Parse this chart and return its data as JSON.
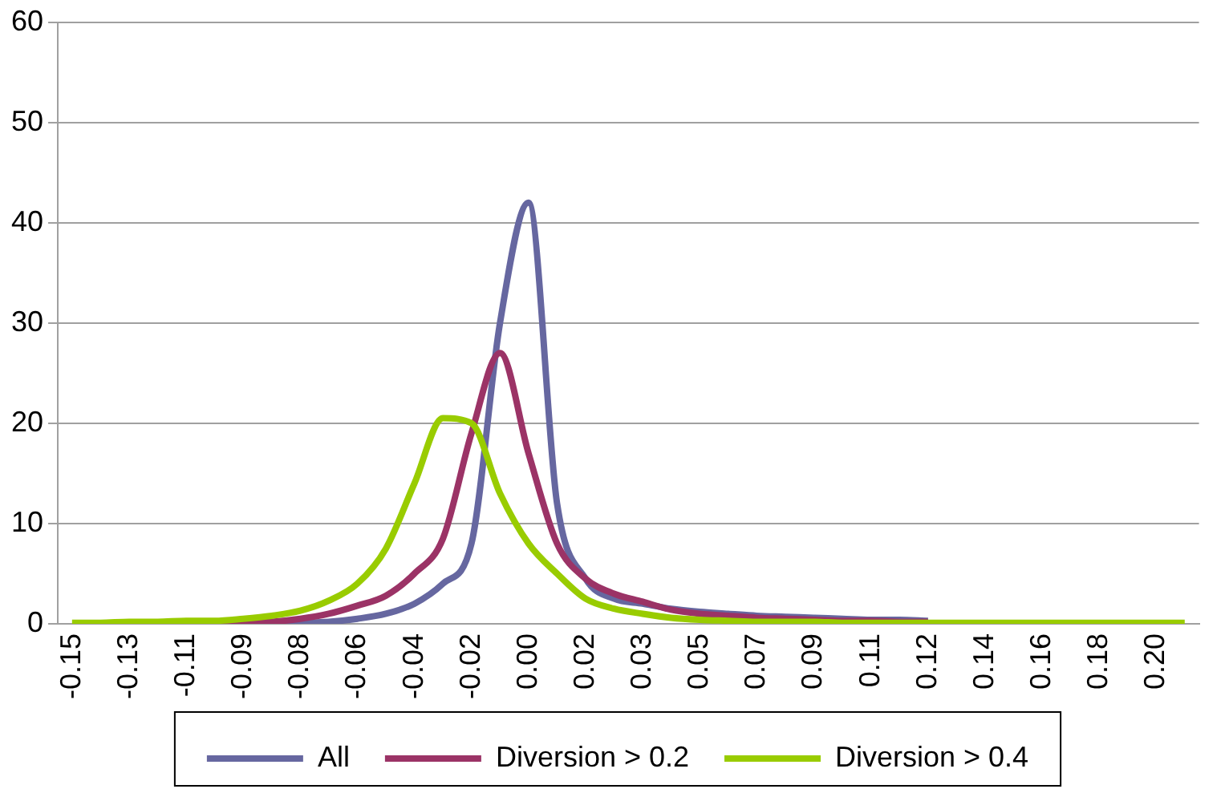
{
  "chart_data": {
    "type": "line",
    "categories": [
      "-0.15",
      null,
      "-0.13",
      null,
      "-0.11",
      null,
      "-0.09",
      null,
      "-0.08",
      null,
      "-0.06",
      null,
      "-0.04",
      null,
      "-0.02",
      null,
      "0.00",
      null,
      "0.02",
      null,
      "0.03",
      null,
      "0.05",
      null,
      "0.07",
      null,
      "0.09",
      null,
      "0.11",
      null,
      "0.12",
      null,
      "0.14",
      null,
      "0.16",
      null,
      "0.18",
      null,
      "0.20",
      null
    ],
    "series": [
      {
        "name": "All",
        "color": "#6667a0",
        "values": [
          null,
          null,
          null,
          null,
          null,
          null,
          null,
          0,
          0.1,
          0.2,
          0.5,
          1,
          2,
          4,
          8,
          30,
          42,
          12,
          4.5,
          2.5,
          2,
          1.5,
          1.2,
          1,
          0.8,
          0.7,
          0.6,
          0.5,
          0.4,
          0.4,
          0.3,
          null,
          null,
          null,
          null,
          null,
          null,
          null,
          null,
          null
        ]
      },
      {
        "name": "Diversion > 0.2",
        "color": "#9b3366",
        "values": [
          null,
          null,
          null,
          null,
          null,
          0,
          0.1,
          0.2,
          0.5,
          1,
          1.8,
          2.8,
          5,
          8.5,
          19,
          27,
          17,
          8,
          4.5,
          3,
          2.2,
          1.4,
          1,
          0.8,
          0.6,
          0.5,
          0.4,
          0.3,
          0.3,
          0.2,
          0.2,
          null,
          null,
          null,
          null,
          null,
          null,
          null,
          null,
          null
        ]
      },
      {
        "name": "Diversion > 0.4",
        "color": "#99cc00",
        "values": [
          0.1,
          0.1,
          0.2,
          0.2,
          0.3,
          0.3,
          0.5,
          0.8,
          1.3,
          2.3,
          4,
          7.5,
          14,
          20.5,
          20,
          13,
          8,
          5,
          2.5,
          1.5,
          1,
          0.6,
          0.4,
          0.3,
          0.2,
          0.2,
          0.2,
          0.1,
          0.1,
          0.1,
          0.1,
          0.1,
          0.1,
          0.1,
          0.1,
          0.1,
          0.1,
          0.1,
          0.1,
          0.1
        ]
      }
    ],
    "ylim": [
      0,
      60
    ],
    "yticks": [
      0,
      10,
      20,
      30,
      40,
      50,
      60
    ],
    "grid": "y",
    "legend": "bottom",
    "marker": "none",
    "line_style": "solid"
  }
}
